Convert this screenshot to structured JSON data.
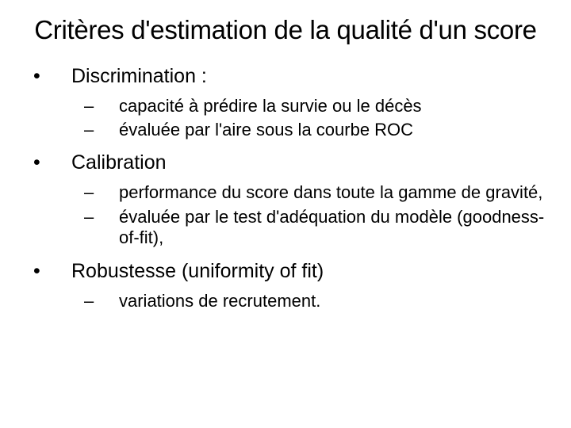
{
  "title": "Critères d'estimation de la qualité d'un score",
  "sections": [
    {
      "heading": "Discrimination :",
      "items": [
        "capacité à prédire la survie ou le décès",
        "évaluée par l'aire sous la courbe ROC"
      ]
    },
    {
      "heading": "Calibration",
      "items": [
        "performance du score dans toute la gamme de gravité,",
        "évaluée par le test d'adéquation du modèle (goodness-of-fit),"
      ]
    },
    {
      "heading": "Robustesse (uniformity of fit)",
      "items": [
        "variations de recrutement."
      ]
    }
  ],
  "style": {
    "background_color": "#ffffff",
    "text_color": "#000000",
    "title_fontsize": 33,
    "level1_fontsize": 25,
    "level2_fontsize": 22,
    "font_family": "Arial"
  }
}
